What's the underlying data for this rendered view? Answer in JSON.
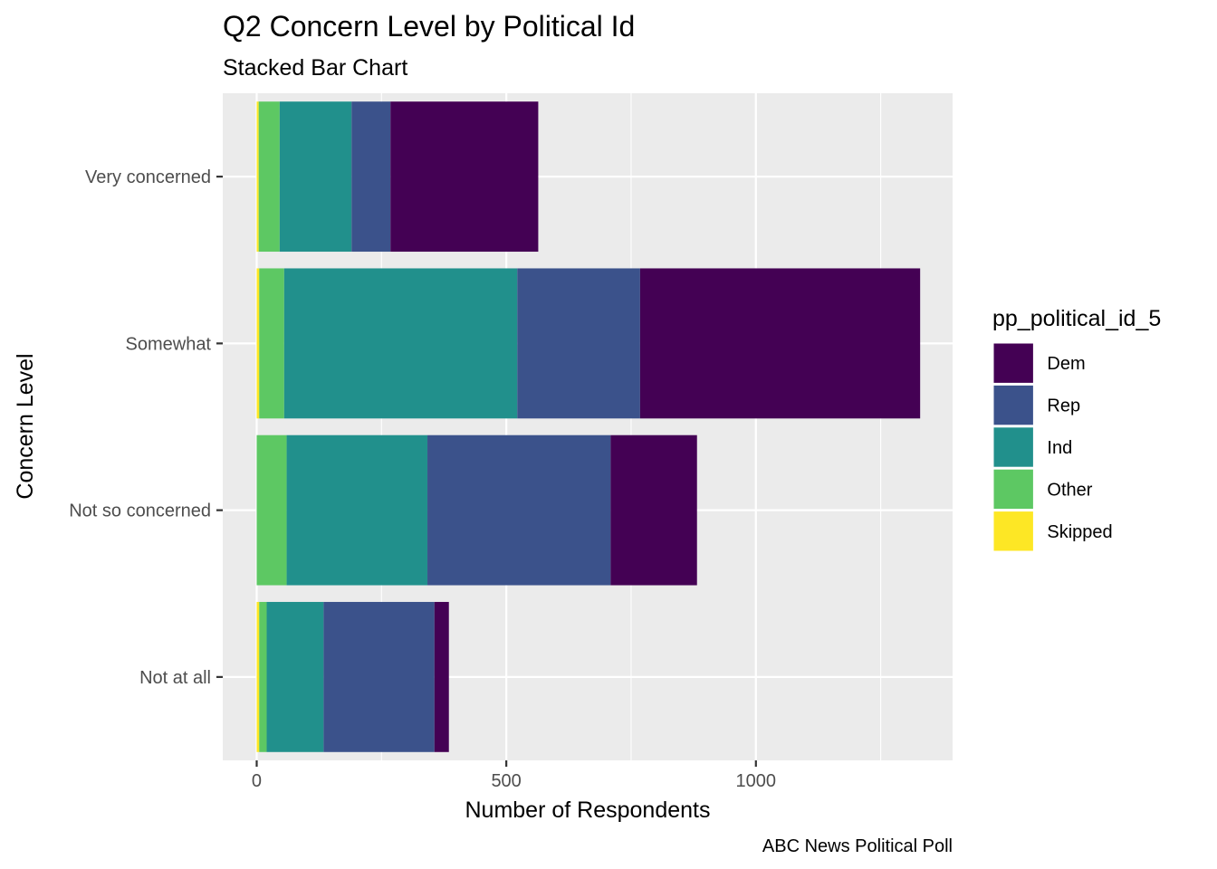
{
  "chart_data": {
    "type": "bar",
    "orientation": "horizontal",
    "stacked": true,
    "title": "Q2 Concern Level by Political Id",
    "subtitle": "Stacked Bar Chart",
    "xlabel": "Number of Respondents",
    "ylabel": "Concern Level",
    "caption": "ABC News Political Poll",
    "xlim": [
      -68,
      1394
    ],
    "xticks": [
      0,
      500,
      1000
    ],
    "xtick_labels": [
      "0",
      "500",
      "1000"
    ],
    "categories": [
      "Very concerned",
      "Somewhat",
      "Not so concerned",
      "Not at all"
    ],
    "legend_title": "pp_political_id_5",
    "legend_position": "right",
    "grid": true,
    "stack_order_from_zero": [
      "Skipped",
      "Other",
      "Ind",
      "Rep",
      "Dem"
    ],
    "series": [
      {
        "name": "Dem",
        "color": "#440154",
        "values": [
          296,
          561,
          173,
          29
        ]
      },
      {
        "name": "Rep",
        "color": "#3b528b",
        "values": [
          78,
          246,
          367,
          222
        ]
      },
      {
        "name": "Ind",
        "color": "#21908c",
        "values": [
          144,
          467,
          282,
          114
        ]
      },
      {
        "name": "Other",
        "color": "#5dc863",
        "values": [
          42,
          50,
          60,
          15
        ]
      },
      {
        "name": "Skipped",
        "color": "#fde725",
        "values": [
          4,
          5,
          0,
          5
        ]
      }
    ]
  }
}
